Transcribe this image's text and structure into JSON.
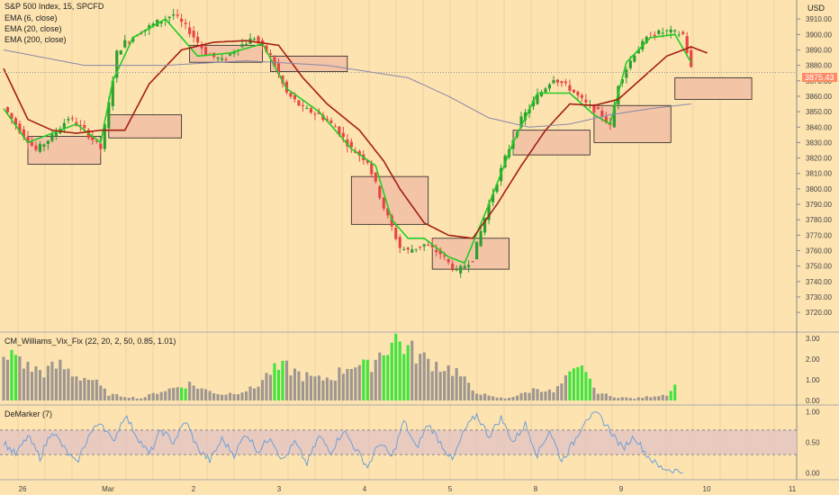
{
  "header": {
    "symbol": "S&P 500 Index, 15, SPCFD",
    "indicators": [
      "EMA (6, close)",
      "EMA (20, close)",
      "EMA (200, close)"
    ],
    "currency": "USD"
  },
  "sub_titles": {
    "vix": "CM_Williams_Vix_Fix (22, 20, 2, 50, 0.85, 1.01)",
    "demarker": "DeMarker (7)"
  },
  "last_price": "3875.43",
  "colors": {
    "background": "#fde3b0",
    "candle_up": "#2e9e2e",
    "candle_down": "#e64545",
    "ema6": "#22cc22",
    "ema20": "#a51e12",
    "ema200": "#8888aa",
    "zone_fill": "#f3c4a6",
    "vix_bar": "#9e9690",
    "vix_high": "#3de63d",
    "demarker_line": "#6fa0d8",
    "demarker_band": "#e4c3c3",
    "price_tag": "#ff8a65"
  },
  "chart_data": [
    {
      "type": "candlestick",
      "title": "S&P 500 Index, 15, SPCFD",
      "x_ticks": [
        "26",
        "Mar",
        "2",
        "3",
        "4",
        "5",
        "8",
        "9",
        "10",
        "11"
      ],
      "y_ticks": [
        3720,
        3730,
        3740,
        3750,
        3760,
        3770,
        3780,
        3790,
        3800,
        3810,
        3820,
        3830,
        3840,
        3850,
        3860,
        3870,
        3880,
        3890,
        3900,
        3910
      ],
      "ylim": [
        3716,
        3920
      ],
      "x_range": [
        0,
        195
      ],
      "last_price": 3875.43,
      "ohlc_anchor_closes": [
        [
          0,
          3853
        ],
        [
          4,
          3838
        ],
        [
          8,
          3825
        ],
        [
          12,
          3834
        ],
        [
          16,
          3846
        ],
        [
          20,
          3838
        ],
        [
          24,
          3826
        ],
        [
          26,
          3855
        ],
        [
          28,
          3888
        ],
        [
          30,
          3895
        ],
        [
          34,
          3902
        ],
        [
          38,
          3908
        ],
        [
          42,
          3913
        ],
        [
          46,
          3902
        ],
        [
          50,
          3888
        ],
        [
          54,
          3883
        ],
        [
          58,
          3892
        ],
        [
          62,
          3898
        ],
        [
          66,
          3886
        ],
        [
          70,
          3862
        ],
        [
          74,
          3852
        ],
        [
          78,
          3848
        ],
        [
          82,
          3840
        ],
        [
          86,
          3826
        ],
        [
          90,
          3818
        ],
        [
          94,
          3788
        ],
        [
          98,
          3762
        ],
        [
          100,
          3760
        ],
        [
          104,
          3764
        ],
        [
          108,
          3758
        ],
        [
          112,
          3746
        ],
        [
          116,
          3755
        ],
        [
          120,
          3790
        ],
        [
          124,
          3820
        ],
        [
          128,
          3845
        ],
        [
          132,
          3860
        ],
        [
          136,
          3872
        ],
        [
          140,
          3865
        ],
        [
          144,
          3855
        ],
        [
          148,
          3848
        ],
        [
          150,
          3840
        ],
        [
          152,
          3868
        ],
        [
          156,
          3888
        ],
        [
          160,
          3900
        ],
        [
          164,
          3902
        ],
        [
          168,
          3900
        ],
        [
          170,
          3878
        ]
      ],
      "series": [
        {
          "name": "EMA (6, close)",
          "color": "#22cc22",
          "values": [
            [
              0,
              3852
            ],
            [
              6,
              3830
            ],
            [
              12,
              3836
            ],
            [
              18,
              3842
            ],
            [
              24,
              3830
            ],
            [
              27,
              3870
            ],
            [
              32,
              3898
            ],
            [
              40,
              3910
            ],
            [
              48,
              3886
            ],
            [
              56,
              3888
            ],
            [
              64,
              3894
            ],
            [
              70,
              3865
            ],
            [
              78,
              3850
            ],
            [
              86,
              3826
            ],
            [
              92,
              3815
            ],
            [
              96,
              3780
            ],
            [
              100,
              3768
            ],
            [
              104,
              3768
            ],
            [
              110,
              3756
            ],
            [
              114,
              3752
            ],
            [
              120,
              3790
            ],
            [
              126,
              3830
            ],
            [
              132,
              3862
            ],
            [
              140,
              3862
            ],
            [
              146,
              3848
            ],
            [
              150,
              3842
            ],
            [
              154,
              3882
            ],
            [
              160,
              3898
            ],
            [
              166,
              3900
            ],
            [
              170,
              3882
            ]
          ]
        },
        {
          "name": "EMA (20, close)",
          "color": "#a51e12",
          "values": [
            [
              0,
              3878
            ],
            [
              6,
              3845
            ],
            [
              12,
              3838
            ],
            [
              18,
              3836
            ],
            [
              24,
              3838
            ],
            [
              30,
              3838
            ],
            [
              36,
              3868
            ],
            [
              44,
              3890
            ],
            [
              52,
              3895
            ],
            [
              60,
              3896
            ],
            [
              68,
              3893
            ],
            [
              74,
              3872
            ],
            [
              80,
              3855
            ],
            [
              88,
              3838
            ],
            [
              94,
              3818
            ],
            [
              98,
              3800
            ],
            [
              104,
              3778
            ],
            [
              110,
              3770
            ],
            [
              116,
              3768
            ],
            [
              122,
              3790
            ],
            [
              128,
              3815
            ],
            [
              134,
              3838
            ],
            [
              140,
              3855
            ],
            [
              146,
              3854
            ],
            [
              152,
              3858
            ],
            [
              158,
              3872
            ],
            [
              164,
              3886
            ],
            [
              170,
              3892
            ],
            [
              174,
              3888
            ]
          ]
        },
        {
          "name": "EMA (200, close)",
          "color": "#8888aa",
          "values": [
            [
              0,
              3890
            ],
            [
              20,
              3880
            ],
            [
              40,
              3880
            ],
            [
              60,
              3883
            ],
            [
              80,
              3880
            ],
            [
              100,
              3872
            ],
            [
              110,
              3860
            ],
            [
              120,
              3846
            ],
            [
              130,
              3840
            ],
            [
              140,
              3842
            ],
            [
              150,
              3848
            ],
            [
              160,
              3852
            ],
            [
              170,
              3855
            ]
          ]
        }
      ],
      "zones": [
        {
          "x": [
            6,
            24
          ],
          "y": [
            3816,
            3834
          ]
        },
        {
          "x": [
            26,
            44
          ],
          "y": [
            3833,
            3848
          ]
        },
        {
          "x": [
            46,
            64
          ],
          "y": [
            3882,
            3893
          ]
        },
        {
          "x": [
            66,
            85
          ],
          "y": [
            3876,
            3886
          ]
        },
        {
          "x": [
            86,
            105
          ],
          "y": [
            3777,
            3808
          ]
        },
        {
          "x": [
            106,
            125
          ],
          "y": [
            3748,
            3768
          ]
        },
        {
          "x": [
            126,
            145
          ],
          "y": [
            3822,
            3838
          ]
        },
        {
          "x": [
            146,
            165
          ],
          "y": [
            3830,
            3854
          ]
        },
        {
          "x": [
            166,
            185
          ],
          "y": [
            3858,
            3872
          ]
        }
      ]
    },
    {
      "type": "bar",
      "title": "CM_Williams_Vix_Fix (22, 20, 2, 50, 0.85, 1.01)",
      "y_ticks": [
        0.0,
        1.0,
        2.0,
        3.0
      ],
      "ylim": [
        0,
        3.05
      ],
      "anchor_values": [
        [
          0,
          1.8
        ],
        [
          3,
          2.3
        ],
        [
          6,
          1.6
        ],
        [
          10,
          1.4
        ],
        [
          14,
          1.7
        ],
        [
          18,
          1.2
        ],
        [
          22,
          1.0
        ],
        [
          26,
          0.3
        ],
        [
          30,
          0.2
        ],
        [
          34,
          0.1
        ],
        [
          38,
          0.4
        ],
        [
          42,
          0.6
        ],
        [
          46,
          0.8
        ],
        [
          50,
          0.5
        ],
        [
          54,
          0.3
        ],
        [
          58,
          0.4
        ],
        [
          62,
          0.6
        ],
        [
          66,
          1.4
        ],
        [
          70,
          1.6
        ],
        [
          74,
          1.2
        ],
        [
          78,
          1.0
        ],
        [
          82,
          1.2
        ],
        [
          86,
          1.8
        ],
        [
          90,
          1.6
        ],
        [
          94,
          2.5
        ],
        [
          97,
          3.0
        ],
        [
          100,
          2.5
        ],
        [
          104,
          2.0
        ],
        [
          108,
          1.7
        ],
        [
          112,
          1.4
        ],
        [
          116,
          0.5
        ],
        [
          120,
          0.2
        ],
        [
          124,
          0.1
        ],
        [
          128,
          0.3
        ],
        [
          132,
          0.6
        ],
        [
          136,
          0.4
        ],
        [
          140,
          1.2
        ],
        [
          142,
          1.4
        ],
        [
          144,
          1.6
        ],
        [
          146,
          0.5
        ],
        [
          150,
          0.2
        ],
        [
          156,
          0.1
        ],
        [
          160,
          0.2
        ],
        [
          164,
          0.3
        ],
        [
          166,
          0.7
        ]
      ],
      "highlighted_indices": [
        [
          2,
          3
        ],
        [
          44,
          45
        ],
        [
          67,
          69
        ],
        [
          89,
          90
        ],
        [
          94,
          100
        ],
        [
          140,
          145
        ],
        [
          165,
          166
        ]
      ]
    },
    {
      "type": "line",
      "title": "DeMarker (7)",
      "y_ticks": [
        0.0,
        0.5,
        1.0
      ],
      "ylim": [
        -0.05,
        1.05
      ],
      "band": [
        0.3,
        0.7
      ],
      "anchor_values": [
        [
          0,
          0.5
        ],
        [
          3,
          0.3
        ],
        [
          6,
          0.6
        ],
        [
          9,
          0.25
        ],
        [
          12,
          0.7
        ],
        [
          15,
          0.4
        ],
        [
          18,
          0.15
        ],
        [
          21,
          0.6
        ],
        [
          24,
          0.85
        ],
        [
          27,
          0.5
        ],
        [
          30,
          0.95
        ],
        [
          33,
          0.6
        ],
        [
          36,
          0.3
        ],
        [
          39,
          0.7
        ],
        [
          42,
          0.5
        ],
        [
          45,
          0.85
        ],
        [
          48,
          0.4
        ],
        [
          51,
          0.2
        ],
        [
          54,
          0.55
        ],
        [
          57,
          0.3
        ],
        [
          60,
          0.65
        ],
        [
          63,
          0.35
        ],
        [
          66,
          0.6
        ],
        [
          69,
          0.2
        ],
        [
          72,
          0.5
        ],
        [
          75,
          0.15
        ],
        [
          78,
          0.6
        ],
        [
          81,
          0.35
        ],
        [
          84,
          0.7
        ],
        [
          87,
          0.4
        ],
        [
          90,
          0.1
        ],
        [
          93,
          0.5
        ],
        [
          96,
          0.25
        ],
        [
          99,
          0.85
        ],
        [
          102,
          0.4
        ],
        [
          105,
          0.8
        ],
        [
          108,
          0.5
        ],
        [
          111,
          0.2
        ],
        [
          114,
          0.7
        ],
        [
          117,
          0.95
        ],
        [
          120,
          0.6
        ],
        [
          123,
          0.9
        ],
        [
          126,
          0.5
        ],
        [
          129,
          0.8
        ],
        [
          132,
          0.3
        ],
        [
          135,
          0.7
        ],
        [
          138,
          0.2
        ],
        [
          141,
          0.5
        ],
        [
          144,
          0.9
        ],
        [
          147,
          0.95
        ],
        [
          150,
          0.7
        ],
        [
          153,
          0.4
        ],
        [
          156,
          0.6
        ],
        [
          159,
          0.3
        ],
        [
          162,
          0.1
        ],
        [
          165,
          0.05
        ],
        [
          168,
          0.02
        ]
      ]
    }
  ]
}
